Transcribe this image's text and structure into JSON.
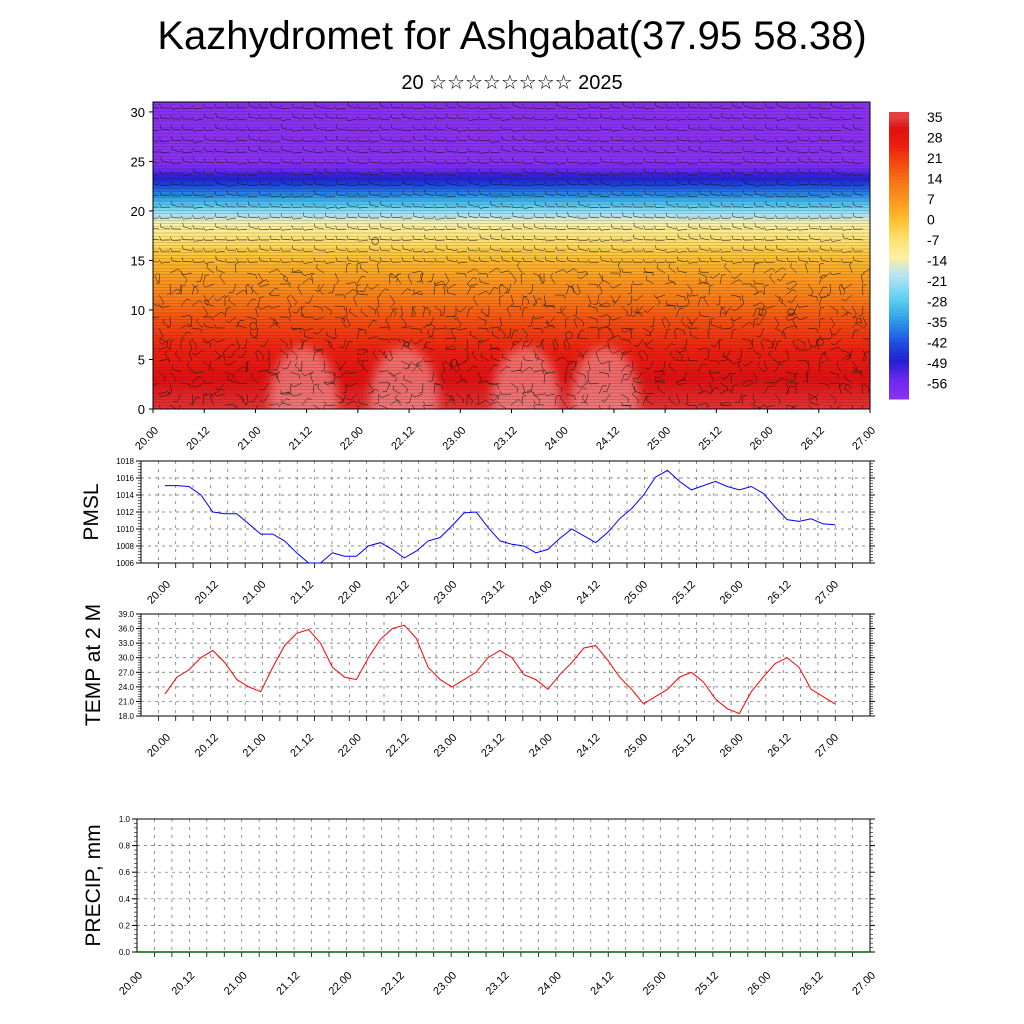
{
  "header": {
    "title": "Kazhydromet for Ashgabat(37.95 58.38)",
    "subtitle": "20 ☆☆☆☆☆☆☆☆ 2025"
  },
  "time_labels": [
    "20.00",
    "20.12",
    "21.00",
    "21.12",
    "22.00",
    "22.12",
    "23.00",
    "23.12",
    "24.00",
    "24.12",
    "25.00",
    "25.12",
    "26.00",
    "26.12",
    "27.00"
  ],
  "chart_data": [
    {
      "type": "heatmap",
      "name": "cross-section",
      "x": [
        "20.00",
        "20.12",
        "21.00",
        "21.12",
        "22.00",
        "22.12",
        "23.00",
        "23.12",
        "24.00",
        "24.12",
        "25.00",
        "25.12",
        "26.00",
        "26.12",
        "27.00"
      ],
      "y_ticks": [
        0,
        5,
        10,
        15,
        20,
        25,
        30
      ],
      "ylim": [
        0,
        31
      ],
      "colorbar": {
        "labels": [
          "35",
          "28",
          "21",
          "14",
          "7",
          "0",
          "-7",
          "-14",
          "-21",
          "-28",
          "-35",
          "-42",
          "-49",
          "-56"
        ],
        "colors": [
          "#f4c2c2",
          "#e01818",
          "#f03010",
          "#f86010",
          "#fb9a20",
          "#fdd040",
          "#fef0a0",
          "#d8ecf5",
          "#5ad0f0",
          "#2a90e8",
          "#2050e0",
          "#2020c8",
          "#6020e8",
          "#8a30f0"
        ]
      },
      "layers_by_height": [
        {
          "z": 0,
          "v": 33
        },
        {
          "z": 3,
          "v": 30
        },
        {
          "z": 6,
          "v": 24
        },
        {
          "z": 9,
          "v": 18
        },
        {
          "z": 12,
          "v": 9
        },
        {
          "z": 15,
          "v": 1
        },
        {
          "z": 17,
          "v": -6
        },
        {
          "z": 19,
          "v": -14
        },
        {
          "z": 21,
          "v": -30
        },
        {
          "z": 23,
          "v": -44
        },
        {
          "z": 25,
          "v": -58
        },
        {
          "z": 31,
          "v": -58
        }
      ]
    },
    {
      "type": "line",
      "ylabel": "PMSL",
      "yticks": [
        "1018",
        "1016",
        "1014",
        "1012",
        "1010",
        "1008",
        "1006"
      ],
      "ylim": [
        1006,
        1018
      ],
      "color": "#0000ff",
      "values": [
        1015.1,
        1015.1,
        1015,
        1014,
        1012,
        1011.8,
        1011.8,
        1010.6,
        1009.4,
        1009.4,
        1008.6,
        1007.2,
        1006,
        1006,
        1007.2,
        1006.8,
        1006.8,
        1008,
        1008.4,
        1007.6,
        1006.6,
        1007.4,
        1008.6,
        1009,
        1010.4,
        1011.9,
        1012,
        1010.2,
        1008.6,
        1008.2,
        1008,
        1007.2,
        1007.6,
        1008.9,
        1010,
        1009.2,
        1008.4,
        1009.6,
        1011.2,
        1012.4,
        1014,
        1016.1,
        1016.9,
        1015.6,
        1014.6,
        1015.1,
        1015.6,
        1015,
        1014.6,
        1015,
        1014.2,
        1012.6,
        1011.1,
        1010.9,
        1011.2,
        1010.6,
        1010.5
      ],
      "x_start": 0,
      "x_end": 6.87
    },
    {
      "type": "line",
      "ylabel": "TEMP at 2 M",
      "yticks": [
        "39.0",
        "36.0",
        "33.0",
        "30.0",
        "27.0",
        "24.0",
        "21.0",
        "18.0"
      ],
      "ylim": [
        18,
        39
      ],
      "color": "#ff0000",
      "values": [
        22.5,
        26,
        27.5,
        30,
        31.5,
        29,
        25.5,
        24,
        23,
        28,
        32.5,
        35,
        35.8,
        33,
        28,
        26,
        25.5,
        30,
        33.8,
        36,
        36.7,
        34,
        28,
        25.5,
        24,
        25.5,
        27,
        30,
        31.5,
        30,
        26.5,
        25.5,
        23.5,
        26.5,
        29,
        32,
        32.5,
        29.5,
        26,
        23.5,
        20.5,
        22,
        23.5,
        26,
        27,
        25,
        21.5,
        19.5,
        18.5,
        23,
        26,
        28.8,
        30,
        28,
        23.5,
        22,
        20.5
      ],
      "x_start": 0,
      "x_end": 6.87
    },
    {
      "type": "line",
      "ylabel": "PRECIP, mm",
      "yticks": [
        "1.0",
        "0.8",
        "0.6",
        "0.4",
        "0.2",
        "0.0"
      ],
      "ylim": [
        0,
        1
      ],
      "color": "#006000",
      "values": [
        0,
        0,
        0,
        0,
        0,
        0,
        0,
        0,
        0,
        0,
        0,
        0,
        0,
        0,
        0,
        0,
        0,
        0,
        0,
        0,
        0,
        0,
        0,
        0,
        0,
        0,
        0,
        0,
        0,
        0,
        0,
        0,
        0,
        0,
        0,
        0,
        0,
        0,
        0,
        0,
        0,
        0,
        0,
        0,
        0,
        0,
        0,
        0,
        0,
        0,
        0,
        0,
        0,
        0,
        0,
        0,
        0
      ],
      "x_start": 0,
      "x_end": 6.87
    }
  ]
}
